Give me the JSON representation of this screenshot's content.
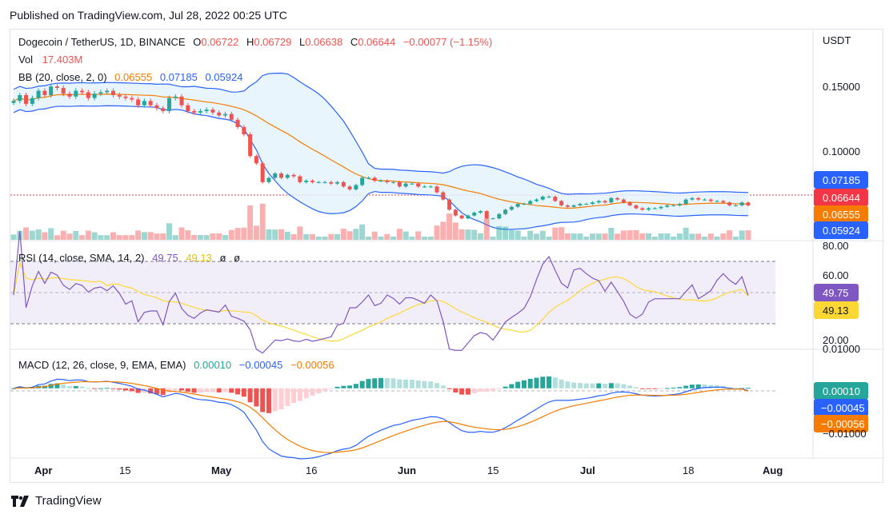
{
  "header": {
    "published": "Published on TradingView.com, Jul 28, 2022 00:25 UTC"
  },
  "footer": {
    "brand": "TradingView"
  },
  "legend": {
    "symbol": "Dogecoin / TetherUS, 1D, BINANCE",
    "o_label": "O",
    "o": "0.06722",
    "h_label": "H",
    "h": "0.06729",
    "l_label": "L",
    "l": "0.06638",
    "c_label": "C",
    "c": "0.06644",
    "change": "−0.00077 (−1.15%)",
    "vol_label": "Vol",
    "vol": "17.403M",
    "bb_label": "BB (20, close, 2, 0)",
    "bb_basis": "0.06555",
    "bb_upper": "0.07185",
    "bb_lower": "0.05924",
    "rsi_label": "RSI (14, close, SMA, 14, 2)",
    "rsi": "49.75",
    "rsi_ma": "49.13",
    "rsi_na1": "ø",
    "rsi_na2": "ø",
    "macd_label": "MACD (12, 26, close, 9, EMA, EMA)",
    "macd_hist": "0.00010",
    "macd_line": "−0.00045",
    "macd_signal": "−0.00056"
  },
  "axis": {
    "currency": "USDT",
    "price_ticks": [
      "0.15000",
      "0.10000"
    ],
    "rsi_ticks": [
      "80.00",
      "60.00",
      "20.00"
    ],
    "macd_ticks": [
      "0.01000",
      "−0.01000"
    ],
    "x_ticks": [
      "Apr",
      "15",
      "May",
      "16",
      "Jun",
      "15",
      "Jul",
      "18",
      "Aug"
    ]
  },
  "badges": {
    "bb_upper": "0.07185",
    "close": "0.06644",
    "bb_basis": "0.06555",
    "bb_lower": "0.05924",
    "rsi": "49.75",
    "rsi_ma": "49.13",
    "macd_hist": "0.00010",
    "macd_line": "−0.00045",
    "macd_signal": "−0.00056"
  },
  "colors": {
    "up": "#26a69a",
    "down": "#ef5350",
    "bb_band": "#2962ff",
    "bb_basis": "#f57c00",
    "bb_fill": "#e3f2fd",
    "rsi": "#7e57c2",
    "rsi_ma": "#fdd835",
    "rsi_fill": "#ede7f6",
    "macd": "#2962ff",
    "signal": "#f57c00",
    "badge_close": "#f23645"
  },
  "chart_data": {
    "type": "candlestick",
    "symbol": "Dogecoin / TetherUS",
    "interval": "1D",
    "exchange": "BINANCE",
    "x_range": [
      "2022-04-01",
      "2022-08-04"
    ],
    "price_range": [
      0.045,
      0.185
    ],
    "last": {
      "open": 0.06722,
      "high": 0.06729,
      "low": 0.06638,
      "close": 0.06644,
      "volume": "17.403M"
    },
    "close_series": [
      0.138,
      0.142,
      0.136,
      0.14,
      0.145,
      0.142,
      0.148,
      0.147,
      0.143,
      0.141,
      0.145,
      0.144,
      0.14,
      0.143,
      0.144,
      0.145,
      0.142,
      0.141,
      0.14,
      0.139,
      0.135,
      0.138,
      0.135,
      0.133,
      0.131,
      0.14,
      0.141,
      0.135,
      0.131,
      0.13,
      0.131,
      0.132,
      0.13,
      0.128,
      0.129,
      0.125,
      0.12,
      0.115,
      0.1,
      0.095,
      0.082,
      0.085,
      0.088,
      0.085,
      0.087,
      0.086,
      0.082,
      0.083,
      0.082,
      0.082,
      0.082,
      0.081,
      0.082,
      0.079,
      0.077,
      0.08,
      0.085,
      0.085,
      0.083,
      0.083,
      0.082,
      0.082,
      0.079,
      0.081,
      0.081,
      0.079,
      0.079,
      0.079,
      0.075,
      0.07,
      0.063,
      0.059,
      0.057,
      0.059,
      0.061,
      0.062,
      0.057,
      0.057,
      0.06,
      0.063,
      0.065,
      0.067,
      0.067,
      0.069,
      0.07,
      0.072,
      0.072,
      0.069,
      0.066,
      0.065,
      0.066,
      0.067,
      0.067,
      0.068,
      0.069,
      0.068,
      0.071,
      0.07,
      0.068,
      0.066,
      0.064,
      0.063,
      0.064,
      0.064,
      0.065,
      0.066,
      0.066,
      0.067,
      0.07,
      0.071,
      0.07,
      0.07,
      0.069,
      0.069,
      0.068,
      0.066,
      0.066,
      0.068,
      0.066
    ],
    "bollinger": {
      "basis_last": 0.06555,
      "upper_last": 0.07185,
      "lower_last": 0.05924
    },
    "rsi": {
      "last": 49.75,
      "ma_last": 49.13,
      "range": [
        10,
        90
      ],
      "bands": [
        70,
        50,
        30
      ]
    },
    "macd": {
      "hist_last": 0.0001,
      "macd_last": -0.00045,
      "signal_last": -0.00056,
      "range": [
        -0.013,
        0.007
      ]
    }
  }
}
